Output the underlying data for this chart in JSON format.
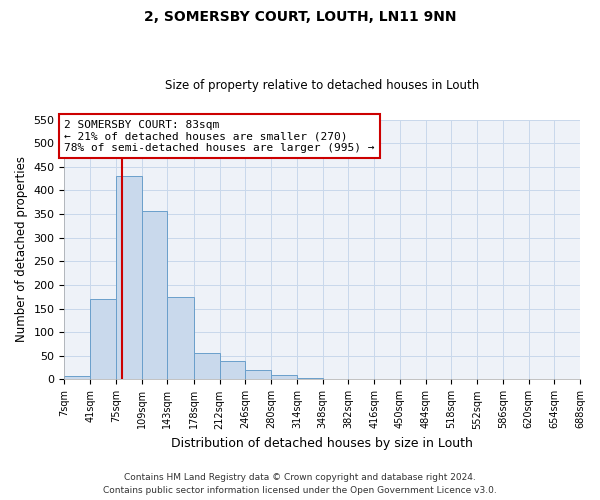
{
  "title": "2, SOMERSBY COURT, LOUTH, LN11 9NN",
  "subtitle": "Size of property relative to detached houses in Louth",
  "xlabel": "Distribution of detached houses by size in Louth",
  "ylabel": "Number of detached properties",
  "bar_color": "#c9d9ec",
  "bar_edge_color": "#6a9fcb",
  "grid_color": "#c8d8eb",
  "background_color": "#eef2f8",
  "annotation_box_color": "#ffffff",
  "annotation_box_edge": "#cc0000",
  "vline_color": "#cc0000",
  "vline_x": 83,
  "bin_edges": [
    7,
    41,
    75,
    109,
    143,
    178,
    212,
    246,
    280,
    314,
    348,
    382,
    416,
    450,
    484,
    518,
    552,
    586,
    620,
    654,
    688
  ],
  "bar_heights": [
    8,
    170,
    430,
    356,
    175,
    55,
    38,
    20,
    10,
    2,
    1,
    0,
    0,
    0,
    0,
    0,
    0,
    1,
    0,
    1
  ],
  "ylim": [
    0,
    550
  ],
  "yticks": [
    0,
    50,
    100,
    150,
    200,
    250,
    300,
    350,
    400,
    450,
    500,
    550
  ],
  "annotation_title": "2 SOMERSBY COURT: 83sqm",
  "annotation_line1": "← 21% of detached houses are smaller (270)",
  "annotation_line2": "78% of semi-detached houses are larger (995) →",
  "footer1": "Contains HM Land Registry data © Crown copyright and database right 2024.",
  "footer2": "Contains public sector information licensed under the Open Government Licence v3.0.",
  "tick_labels": [
    "7sqm",
    "41sqm",
    "75sqm",
    "109sqm",
    "143sqm",
    "178sqm",
    "212sqm",
    "246sqm",
    "280sqm",
    "314sqm",
    "348sqm",
    "382sqm",
    "416sqm",
    "450sqm",
    "484sqm",
    "518sqm",
    "552sqm",
    "586sqm",
    "620sqm",
    "654sqm",
    "688sqm"
  ]
}
